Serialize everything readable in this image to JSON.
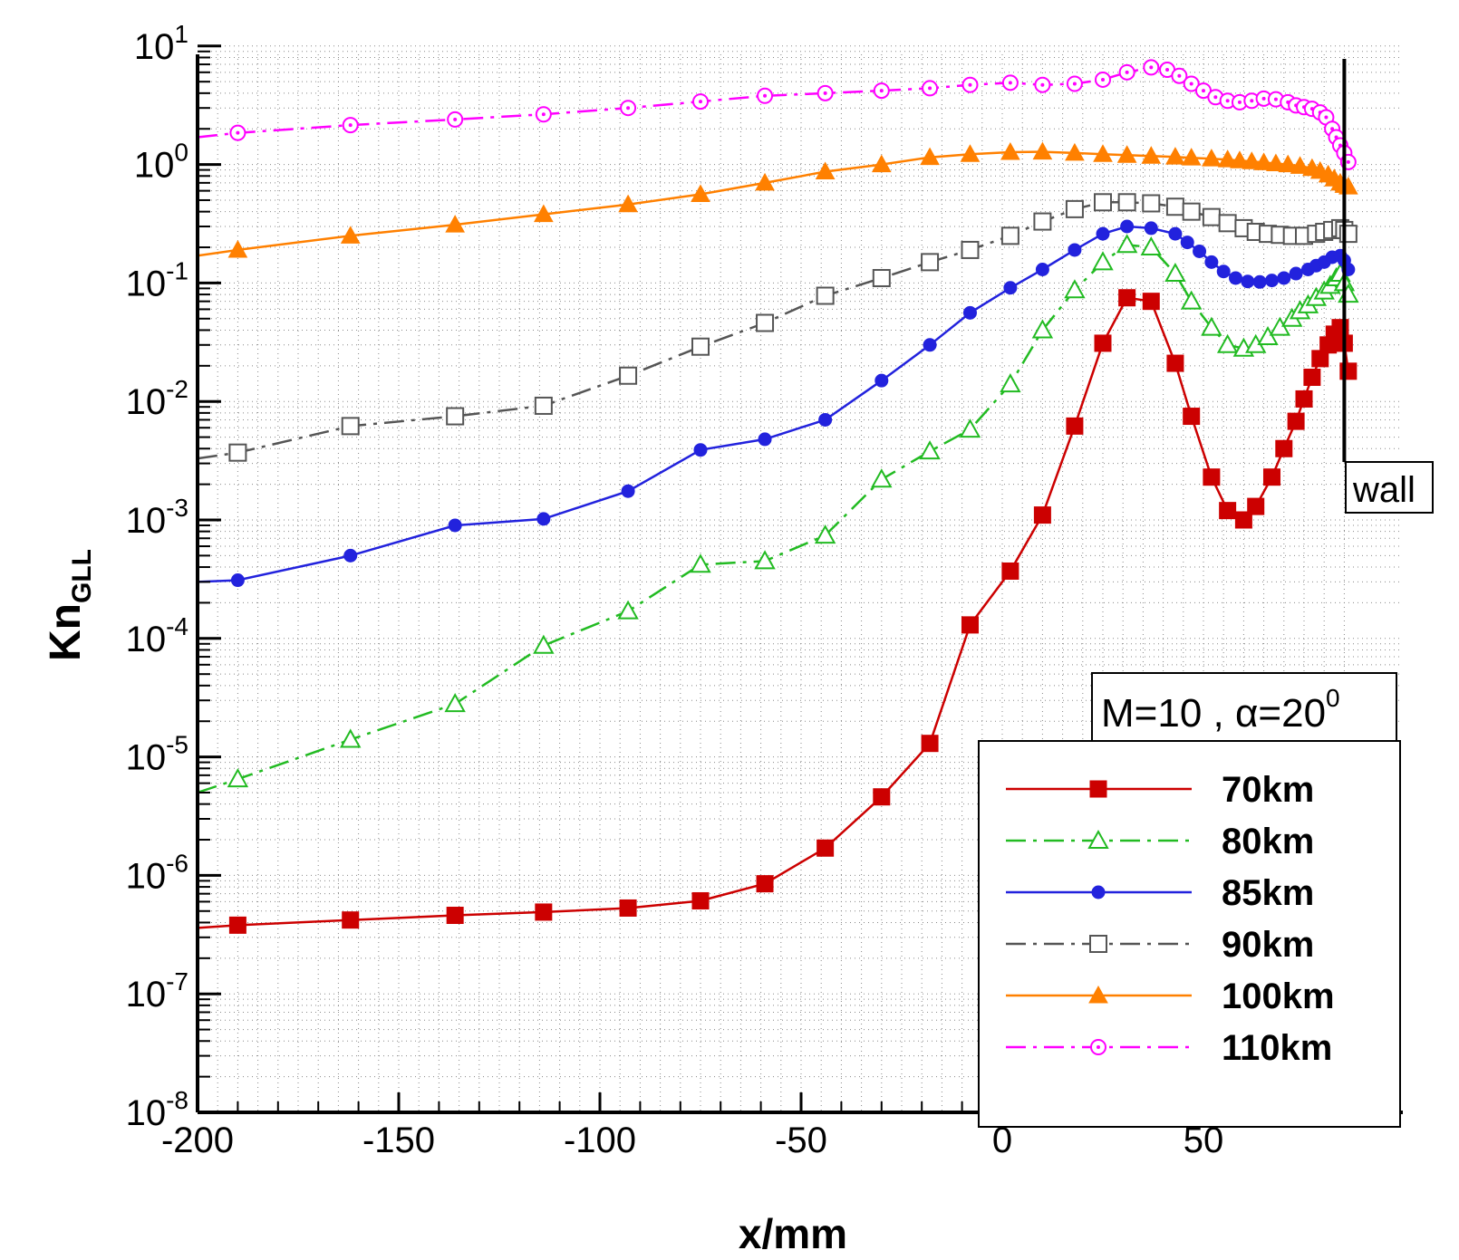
{
  "chart_data": {
    "type": "line",
    "title": "",
    "xlabel": "x/mm",
    "ylabel_main": "Kn",
    "ylabel_sub": "GLL",
    "y_scale": "log",
    "xlim": [
      -200,
      88
    ],
    "ylim": [
      1e-08,
      10
    ],
    "grid": true,
    "legend_position": "bottom-right",
    "x_ticks": [
      "-200",
      "-150",
      "-100",
      "-50",
      "0",
      "50"
    ],
    "x_tick_values": [
      -200,
      -150,
      -100,
      -50,
      0,
      50
    ],
    "y_ticks": [
      {
        "base": "10",
        "exp": "-8",
        "value": 1e-08
      },
      {
        "base": "10",
        "exp": "-7",
        "value": 1e-07
      },
      {
        "base": "10",
        "exp": "-6",
        "value": 1e-06
      },
      {
        "base": "10",
        "exp": "-5",
        "value": 1e-05
      },
      {
        "base": "10",
        "exp": "-4",
        "value": 0.0001
      },
      {
        "base": "10",
        "exp": "-3",
        "value": 0.001
      },
      {
        "base": "10",
        "exp": "-2",
        "value": 0.01
      },
      {
        "base": "10",
        "exp": "-1",
        "value": 0.1
      },
      {
        "base": "10",
        "exp": "0",
        "value": 1
      },
      {
        "base": "10",
        "exp": "1",
        "value": 10
      }
    ],
    "annotations": {
      "wall_label": "wall",
      "wall_x": 85,
      "condition_text": "M=10 , α=20",
      "condition_sup": "0"
    },
    "series": [
      {
        "name": "70km",
        "color": "#cc0000",
        "dash": "solid",
        "marker": "filled-square",
        "points": [
          [
            -200,
            3.6e-07
          ],
          [
            -190,
            3.8e-07
          ],
          [
            -162,
            4.2e-07
          ],
          [
            -136,
            4.6e-07
          ],
          [
            -114,
            4.9e-07
          ],
          [
            -93,
            5.3e-07
          ],
          [
            -75,
            6.1e-07
          ],
          [
            -59,
            8.5e-07
          ],
          [
            -44,
            1.7e-06
          ],
          [
            -30,
            4.6e-06
          ],
          [
            -18,
            1.3e-05
          ],
          [
            -8,
            0.00013
          ],
          [
            2,
            0.00037
          ],
          [
            10,
            0.0011
          ],
          [
            18,
            0.0062
          ],
          [
            25,
            0.031
          ],
          [
            31,
            0.075
          ],
          [
            37,
            0.07
          ],
          [
            43,
            0.021
          ],
          [
            47,
            0.0075
          ],
          [
            52,
            0.0023
          ],
          [
            56,
            0.0012
          ],
          [
            60,
            0.001
          ],
          [
            63,
            0.0013
          ],
          [
            67,
            0.0023
          ],
          [
            70,
            0.004
          ],
          [
            73,
            0.0068
          ],
          [
            75,
            0.0105
          ],
          [
            77,
            0.016
          ],
          [
            79,
            0.023
          ],
          [
            81,
            0.03
          ],
          [
            82.5,
            0.037
          ],
          [
            84,
            0.042
          ],
          [
            85,
            0.031
          ],
          [
            86,
            0.018
          ]
        ]
      },
      {
        "name": "80km",
        "color": "#22bb22",
        "dash": "dashdot",
        "marker": "open-triangle",
        "points": [
          [
            -200,
            5e-06
          ],
          [
            -190,
            6.5e-06
          ],
          [
            -162,
            1.4e-05
          ],
          [
            -136,
            2.8e-05
          ],
          [
            -114,
            8.7e-05
          ],
          [
            -93,
            0.00017
          ],
          [
            -75,
            0.00042
          ],
          [
            -59,
            0.00045
          ],
          [
            -44,
            0.00074
          ],
          [
            -30,
            0.0022
          ],
          [
            -18,
            0.0038
          ],
          [
            -8,
            0.0058
          ],
          [
            2,
            0.014
          ],
          [
            10,
            0.04
          ],
          [
            18,
            0.087
          ],
          [
            25,
            0.15
          ],
          [
            31,
            0.21
          ],
          [
            37,
            0.2
          ],
          [
            43,
            0.12
          ],
          [
            47,
            0.07
          ],
          [
            52,
            0.042
          ],
          [
            56,
            0.03
          ],
          [
            60,
            0.028
          ],
          [
            63,
            0.03
          ],
          [
            66,
            0.035
          ],
          [
            69,
            0.042
          ],
          [
            72,
            0.05
          ],
          [
            74,
            0.058
          ],
          [
            76,
            0.065
          ],
          [
            78,
            0.075
          ],
          [
            80,
            0.085
          ],
          [
            81.5,
            0.095
          ],
          [
            83,
            0.11
          ],
          [
            84,
            0.12
          ],
          [
            85,
            0.1
          ],
          [
            86,
            0.08
          ]
        ]
      },
      {
        "name": "85km",
        "color": "#2222dd",
        "dash": "solid",
        "marker": "filled-circle",
        "points": [
          [
            -200,
            0.0003
          ],
          [
            -190,
            0.00031
          ],
          [
            -162,
            0.0005
          ],
          [
            -136,
            0.0009
          ],
          [
            -114,
            0.00102
          ],
          [
            -93,
            0.00175
          ],
          [
            -75,
            0.0039
          ],
          [
            -59,
            0.0048
          ],
          [
            -44,
            0.007
          ],
          [
            -30,
            0.015
          ],
          [
            -18,
            0.03
          ],
          [
            -8,
            0.056
          ],
          [
            2,
            0.091
          ],
          [
            10,
            0.13
          ],
          [
            18,
            0.19
          ],
          [
            25,
            0.26
          ],
          [
            31,
            0.3
          ],
          [
            37,
            0.29
          ],
          [
            43,
            0.26
          ],
          [
            46,
            0.22
          ],
          [
            49,
            0.185
          ],
          [
            52,
            0.15
          ],
          [
            55,
            0.125
          ],
          [
            58,
            0.11
          ],
          [
            61,
            0.103
          ],
          [
            64,
            0.102
          ],
          [
            67,
            0.105
          ],
          [
            70,
            0.11
          ],
          [
            73,
            0.12
          ],
          [
            76,
            0.13
          ],
          [
            78,
            0.14
          ],
          [
            80,
            0.15
          ],
          [
            82,
            0.165
          ],
          [
            84,
            0.17
          ],
          [
            85,
            0.155
          ],
          [
            86,
            0.13
          ]
        ]
      },
      {
        "name": "90km",
        "color": "#555555",
        "dash": "dashdot",
        "marker": "open-square",
        "points": [
          [
            -200,
            0.0033
          ],
          [
            -190,
            0.0037
          ],
          [
            -162,
            0.0062
          ],
          [
            -136,
            0.0075
          ],
          [
            -114,
            0.0092
          ],
          [
            -93,
            0.0165
          ],
          [
            -75,
            0.029
          ],
          [
            -59,
            0.046
          ],
          [
            -44,
            0.078
          ],
          [
            -30,
            0.11
          ],
          [
            -18,
            0.15
          ],
          [
            -8,
            0.19
          ],
          [
            2,
            0.25
          ],
          [
            10,
            0.33
          ],
          [
            18,
            0.42
          ],
          [
            25,
            0.48
          ],
          [
            31,
            0.48
          ],
          [
            37,
            0.47
          ],
          [
            43,
            0.44
          ],
          [
            47,
            0.4
          ],
          [
            52,
            0.36
          ],
          [
            56,
            0.32
          ],
          [
            60,
            0.29
          ],
          [
            63,
            0.27
          ],
          [
            66,
            0.26
          ],
          [
            69,
            0.255
          ],
          [
            72,
            0.25
          ],
          [
            75,
            0.25
          ],
          [
            78,
            0.26
          ],
          [
            80,
            0.27
          ],
          [
            82,
            0.28
          ],
          [
            84,
            0.29
          ],
          [
            85,
            0.28
          ],
          [
            86,
            0.26
          ]
        ]
      },
      {
        "name": "100km",
        "color": "#ff8000",
        "dash": "solid",
        "marker": "filled-triangle",
        "points": [
          [
            -200,
            0.17
          ],
          [
            -190,
            0.19
          ],
          [
            -162,
            0.25
          ],
          [
            -136,
            0.31
          ],
          [
            -114,
            0.38
          ],
          [
            -93,
            0.46
          ],
          [
            -75,
            0.56
          ],
          [
            -59,
            0.7
          ],
          [
            -44,
            0.87
          ],
          [
            -30,
            1.0
          ],
          [
            -18,
            1.15
          ],
          [
            -8,
            1.22
          ],
          [
            2,
            1.27
          ],
          [
            10,
            1.28
          ],
          [
            18,
            1.25
          ],
          [
            25,
            1.22
          ],
          [
            31,
            1.2
          ],
          [
            37,
            1.18
          ],
          [
            43,
            1.16
          ],
          [
            47,
            1.14
          ],
          [
            52,
            1.12
          ],
          [
            56,
            1.1
          ],
          [
            59,
            1.08
          ],
          [
            62,
            1.06
          ],
          [
            65,
            1.04
          ],
          [
            68,
            1.02
          ],
          [
            71,
            1.0
          ],
          [
            74,
            0.97
          ],
          [
            77,
            0.93
          ],
          [
            79,
            0.88
          ],
          [
            81,
            0.82
          ],
          [
            82.5,
            0.76
          ],
          [
            84,
            0.7
          ],
          [
            85,
            0.67
          ],
          [
            86,
            0.65
          ]
        ]
      },
      {
        "name": "110km",
        "color": "#ff00ff",
        "dash": "dashdot",
        "marker": "open-circle",
        "points": [
          [
            -200,
            1.7
          ],
          [
            -190,
            1.85
          ],
          [
            -162,
            2.15
          ],
          [
            -136,
            2.4
          ],
          [
            -114,
            2.65
          ],
          [
            -93,
            3.0
          ],
          [
            -75,
            3.4
          ],
          [
            -59,
            3.8
          ],
          [
            -44,
            4.0
          ],
          [
            -30,
            4.2
          ],
          [
            -18,
            4.4
          ],
          [
            -8,
            4.7
          ],
          [
            2,
            4.9
          ],
          [
            10,
            4.7
          ],
          [
            18,
            4.8
          ],
          [
            25,
            5.2
          ],
          [
            31,
            6.0
          ],
          [
            37,
            6.6
          ],
          [
            41,
            6.3
          ],
          [
            44,
            5.6
          ],
          [
            47,
            4.8
          ],
          [
            50,
            4.2
          ],
          [
            53,
            3.7
          ],
          [
            56,
            3.45
          ],
          [
            59,
            3.35
          ],
          [
            62,
            3.45
          ],
          [
            65,
            3.6
          ],
          [
            68,
            3.55
          ],
          [
            71,
            3.35
          ],
          [
            73,
            3.15
          ],
          [
            75,
            3.05
          ],
          [
            77,
            2.95
          ],
          [
            79,
            2.75
          ],
          [
            80.5,
            2.5
          ],
          [
            82,
            2.0
          ],
          [
            83,
            1.7
          ],
          [
            84,
            1.45
          ],
          [
            85,
            1.25
          ],
          [
            86,
            1.05
          ]
        ]
      }
    ]
  }
}
